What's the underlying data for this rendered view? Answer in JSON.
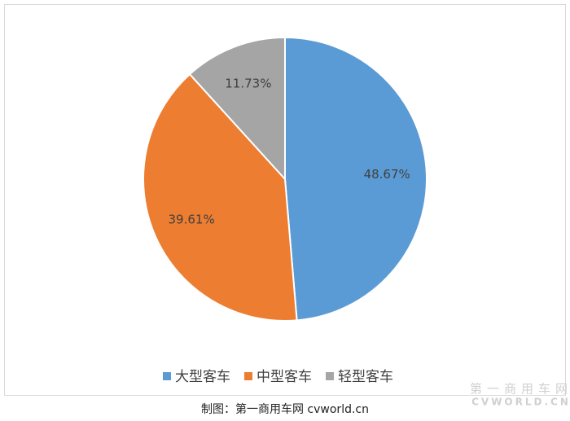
{
  "chart_data": {
    "type": "pie",
    "categories": [
      "大型客车",
      "中型客车",
      "轻型客车"
    ],
    "values": [
      48.67,
      39.61,
      11.73
    ],
    "value_labels": [
      "48.67%",
      "39.61%",
      "11.73%"
    ],
    "colors": [
      "#5b9bd5",
      "#ed7d31",
      "#a5a5a5"
    ],
    "legend": "bottom"
  },
  "caption": "制图：第一商用车网 cvworld.cn",
  "watermark": [
    "第一商用车网",
    "CVWORLD.CN"
  ]
}
